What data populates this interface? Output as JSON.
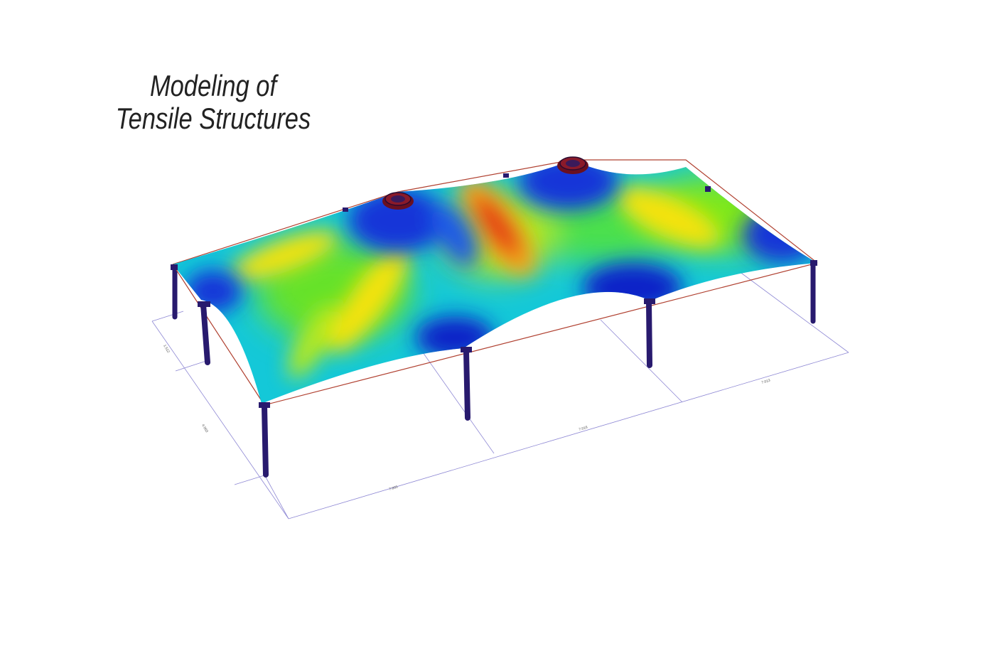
{
  "title": {
    "line1": "Modeling of",
    "line2": "Tensile Structures"
  },
  "dimensions": {
    "short_side_1": "1.512",
    "short_side_2": "4.003",
    "long_side_1": "7.005",
    "long_side_2": "7.016",
    "long_side_3": "7.013"
  },
  "colors": {
    "high": "#e11a12",
    "mid_high": "#f5e20f",
    "mid": "#7ee81c",
    "mid_low": "#12d8d8",
    "low": "#1020c8",
    "mast": "#281a6e",
    "edge_cable": "#b04030",
    "dimension_line": "#8e88d4"
  }
}
